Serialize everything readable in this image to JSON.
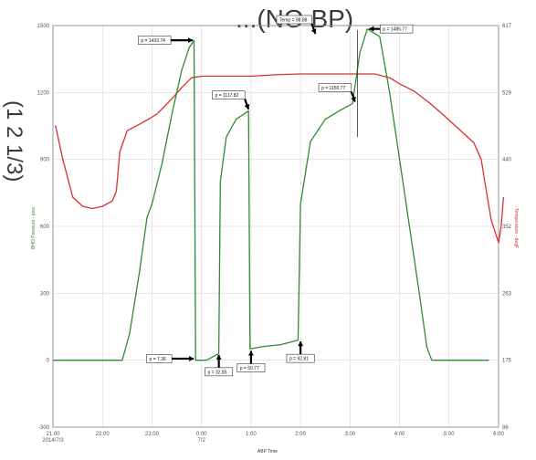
{
  "header": {
    "partial_title": "...(NO BP)",
    "side_fragment": "(1 2 1/3)"
  },
  "chart_data": {
    "type": "line",
    "xlabel": "ABP Time",
    "ylabel_left": "BHO Pressure - psia",
    "ylabel_right": "Temperature - degF",
    "x_ticks": [
      {
        "v": 0,
        "label": "21:00",
        "sub": "2014/7/3"
      },
      {
        "v": 1,
        "label": "22:00",
        "sub": ""
      },
      {
        "v": 2,
        "label": "23:00",
        "sub": ""
      },
      {
        "v": 3,
        "label": "0:00",
        "sub": "7/2"
      },
      {
        "v": 4,
        "label": "1:00",
        "sub": ""
      },
      {
        "v": 5,
        "label": "2:00",
        "sub": ""
      },
      {
        "v": 6,
        "label": "3:00",
        "sub": ""
      },
      {
        "v": 7,
        "label": "4:00",
        "sub": ""
      },
      {
        "v": 8,
        "label": "5:00",
        "sub": ""
      },
      {
        "v": 9,
        "label": "6:00",
        "sub": ""
      }
    ],
    "xlim": [
      0,
      9
    ],
    "y_left_ticks": [
      "-300",
      "0",
      "300",
      "600",
      "900",
      "1200",
      "1500"
    ],
    "ylim_left": [
      -300,
      1500
    ],
    "y_right_ticks": [
      "86",
      "175",
      "263",
      "352",
      "440",
      "529",
      "617"
    ],
    "ylim_right": [
      86,
      617
    ],
    "grid": true,
    "series": [
      {
        "name": "",
        "color": "#d93030",
        "axis": "right",
        "points": [
          [
            0.05,
            485
          ],
          [
            0.2,
            440
          ],
          [
            0.4,
            390
          ],
          [
            0.6,
            378
          ],
          [
            0.8,
            375
          ],
          [
            1.0,
            378
          ],
          [
            1.2,
            385
          ],
          [
            1.28,
            398
          ],
          [
            1.35,
            450
          ],
          [
            1.5,
            478
          ],
          [
            1.7,
            485
          ],
          [
            1.9,
            492
          ],
          [
            2.1,
            500
          ],
          [
            2.4,
            520
          ],
          [
            2.6,
            535
          ],
          [
            2.8,
            548
          ],
          [
            3.0,
            550
          ],
          [
            3.5,
            550
          ],
          [
            4.0,
            550
          ],
          [
            4.5,
            552
          ],
          [
            5.0,
            553
          ],
          [
            5.5,
            553
          ],
          [
            6.0,
            553
          ],
          [
            6.5,
            553
          ],
          [
            6.8,
            548
          ],
          [
            7.0,
            540
          ],
          [
            7.3,
            530
          ],
          [
            7.6,
            515
          ],
          [
            7.9,
            498
          ],
          [
            8.2,
            480
          ],
          [
            8.5,
            462
          ],
          [
            8.65,
            440
          ],
          [
            8.75,
            400
          ],
          [
            8.85,
            360
          ],
          [
            8.95,
            340
          ],
          [
            9.0,
            330
          ],
          [
            9.05,
            350
          ],
          [
            9.1,
            390
          ]
        ]
      },
      {
        "name": "",
        "color": "#2e8b2e",
        "axis": "left",
        "points": [
          [
            0,
            0
          ],
          [
            1.4,
            0
          ],
          [
            1.55,
            120
          ],
          [
            1.75,
            400
          ],
          [
            1.9,
            640
          ],
          [
            2.0,
            700
          ],
          [
            2.2,
            880
          ],
          [
            2.4,
            1100
          ],
          [
            2.6,
            1300
          ],
          [
            2.75,
            1400
          ],
          [
            2.85,
            1433
          ],
          [
            2.88,
            0
          ],
          [
            3.1,
            0
          ],
          [
            3.35,
            30
          ],
          [
            3.38,
            800
          ],
          [
            3.5,
            1000
          ],
          [
            3.7,
            1080
          ],
          [
            3.95,
            1117
          ],
          [
            3.98,
            50
          ],
          [
            4.2,
            60
          ],
          [
            4.6,
            70
          ],
          [
            4.95,
            90
          ],
          [
            5.0,
            700
          ],
          [
            5.2,
            980
          ],
          [
            5.5,
            1080
          ],
          [
            5.8,
            1120
          ],
          [
            6.05,
            1150
          ],
          [
            6.2,
            1380
          ],
          [
            6.35,
            1485
          ],
          [
            6.6,
            1450
          ],
          [
            6.8,
            1200
          ],
          [
            7.0,
            900
          ],
          [
            7.2,
            600
          ],
          [
            7.4,
            300
          ],
          [
            7.55,
            60
          ],
          [
            7.65,
            0
          ],
          [
            8.8,
            0
          ]
        ]
      }
    ],
    "annotations": [
      {
        "label": "p = 1433.74",
        "x": 2.86,
        "y": 1434,
        "box": "left",
        "arrow": "right"
      },
      {
        "label": "Temp = 98.88",
        "x": 5.3,
        "y": 1455,
        "box": "right",
        "arrow": "down"
      },
      {
        "label": "p = 1485.77",
        "x": 6.35,
        "y": 1485,
        "box": "right",
        "arrow": "left"
      },
      {
        "label": "p = 1117.82",
        "x": 3.95,
        "y": 1117,
        "box": "left",
        "arrow": "down"
      },
      {
        "label": "p = 1150.77",
        "x": 6.1,
        "y": 1150,
        "box": "left",
        "arrow": "down"
      },
      {
        "label": "p = 7.36",
        "x": 2.88,
        "y": 7,
        "box": "left",
        "arrow": "right"
      },
      {
        "label": "p = 32.85",
        "x": 3.35,
        "y": 32,
        "box": "below",
        "arrow": "up"
      },
      {
        "label": "p = 50.77",
        "x": 4.0,
        "y": 50,
        "box": "below",
        "arrow": "up"
      },
      {
        "label": "p = 92.81",
        "x": 5.0,
        "y": 92,
        "box": "below",
        "arrow": "up"
      }
    ]
  }
}
